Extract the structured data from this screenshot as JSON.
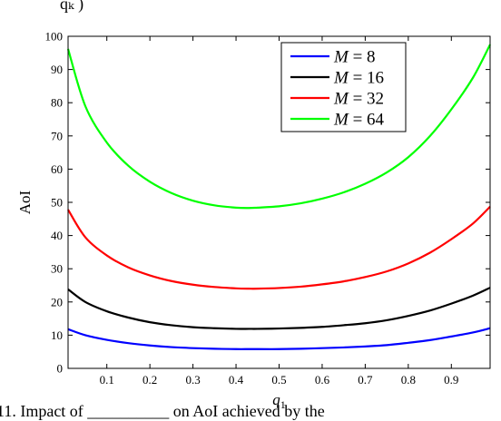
{
  "caption": {
    "top_fragment": "qₖ   )",
    "bottom_fragment": "11. Impact of __________ on AoI achieved by the"
  },
  "chart_data": {
    "type": "line",
    "title": "",
    "xlabel": "q1",
    "xlabel_main": "q",
    "xlabel_sub": "1",
    "ylabel": "AoI",
    "xlim": [
      0.01,
      0.99
    ],
    "ylim": [
      0,
      100
    ],
    "xticks": [
      0.1,
      0.2,
      0.3,
      0.4,
      0.5,
      0.6,
      0.7,
      0.8,
      0.9
    ],
    "xtick_labels": [
      "0.1",
      "0.2",
      "0.3",
      "0.4",
      "0.5",
      "0.6",
      "0.7",
      "0.8",
      "0.9"
    ],
    "yticks": [
      0,
      10,
      20,
      30,
      40,
      50,
      60,
      70,
      80,
      90,
      100
    ],
    "ytick_labels": [
      "0",
      "10",
      "20",
      "30",
      "40",
      "50",
      "60",
      "70",
      "80",
      "90",
      "100"
    ],
    "grid": false,
    "legend_position": "top-right",
    "legend_var": "M",
    "series": [
      {
        "name": "M = 8",
        "M": "8",
        "color": "#0000ff",
        "x": [
          0.01,
          0.05,
          0.1,
          0.15,
          0.2,
          0.25,
          0.3,
          0.35,
          0.4,
          0.43,
          0.45,
          0.5,
          0.55,
          0.6,
          0.65,
          0.7,
          0.75,
          0.8,
          0.85,
          0.9,
          0.95,
          0.99
        ],
        "y": [
          11.8,
          10.0,
          8.6,
          7.6,
          6.9,
          6.4,
          6.1,
          5.9,
          5.8,
          5.8,
          5.8,
          5.8,
          5.9,
          6.1,
          6.3,
          6.6,
          7.0,
          7.7,
          8.5,
          9.6,
          10.8,
          12.1
        ]
      },
      {
        "name": "M = 16",
        "M": "16",
        "color": "#000000",
        "x": [
          0.01,
          0.05,
          0.1,
          0.15,
          0.2,
          0.25,
          0.3,
          0.35,
          0.4,
          0.43,
          0.45,
          0.5,
          0.55,
          0.6,
          0.65,
          0.7,
          0.75,
          0.8,
          0.85,
          0.9,
          0.95,
          0.99
        ],
        "y": [
          23.8,
          20.0,
          17.2,
          15.3,
          13.9,
          13.0,
          12.4,
          12.1,
          11.9,
          11.9,
          11.9,
          12.0,
          12.2,
          12.5,
          13.0,
          13.6,
          14.5,
          15.8,
          17.4,
          19.5,
          21.9,
          24.3
        ]
      },
      {
        "name": "M = 32",
        "M": "32",
        "color": "#ff0000",
        "x": [
          0.01,
          0.05,
          0.1,
          0.15,
          0.2,
          0.25,
          0.3,
          0.35,
          0.4,
          0.43,
          0.45,
          0.5,
          0.55,
          0.6,
          0.65,
          0.7,
          0.75,
          0.8,
          0.85,
          0.9,
          0.95,
          0.99
        ],
        "y": [
          47.8,
          39.5,
          34.0,
          30.4,
          28.0,
          26.3,
          25.2,
          24.5,
          24.1,
          24.0,
          24.0,
          24.2,
          24.6,
          25.3,
          26.2,
          27.5,
          29.2,
          31.6,
          34.8,
          38.9,
          43.6,
          48.7
        ]
      },
      {
        "name": "M = 64",
        "M": "64",
        "color": "#00ff00",
        "x": [
          0.01,
          0.05,
          0.1,
          0.15,
          0.2,
          0.25,
          0.3,
          0.35,
          0.4,
          0.43,
          0.45,
          0.5,
          0.55,
          0.6,
          0.65,
          0.7,
          0.75,
          0.8,
          0.85,
          0.9,
          0.95,
          0.99
        ],
        "y": [
          96.2,
          79.0,
          68.0,
          61.0,
          56.2,
          52.8,
          50.5,
          49.1,
          48.4,
          48.3,
          48.4,
          48.8,
          49.7,
          51.1,
          53.0,
          55.6,
          59.0,
          63.6,
          69.9,
          78.0,
          87.5,
          97.5
        ]
      }
    ]
  }
}
